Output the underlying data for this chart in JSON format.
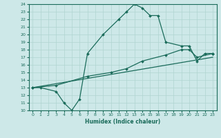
{
  "xlabel": "Humidex (Indice chaleur)",
  "ylabel": "",
  "bg_color": "#cde8e8",
  "grid_color": "#b0d4d0",
  "line_color": "#1a6b5a",
  "xmin": -0.5,
  "xmax": 23.5,
  "ymin": 10,
  "ymax": 24,
  "curve1_x": [
    0,
    1,
    3,
    4,
    5,
    6,
    7,
    9,
    11,
    12,
    13,
    14,
    15,
    16,
    17,
    19,
    20,
    21,
    22,
    23
  ],
  "curve1_y": [
    13,
    13,
    12.5,
    11,
    10,
    11.5,
    17.5,
    20,
    22,
    23,
    24,
    23.5,
    22.5,
    22.5,
    19,
    18.5,
    18.5,
    16.5,
    17.5,
    17.5
  ],
  "curve2_x": [
    0,
    3,
    7,
    10,
    12,
    14,
    17,
    19,
    20,
    21,
    23
  ],
  "curve2_y": [
    13,
    13.3,
    14.5,
    15.0,
    15.5,
    16.5,
    17.3,
    18.0,
    18.0,
    17.0,
    17.5
  ],
  "curve3_x": [
    0,
    23
  ],
  "curve3_y": [
    13,
    17
  ],
  "yticks": [
    10,
    11,
    12,
    13,
    14,
    15,
    16,
    17,
    18,
    19,
    20,
    21,
    22,
    23,
    24
  ],
  "xticks": [
    0,
    1,
    2,
    3,
    4,
    5,
    6,
    7,
    8,
    9,
    10,
    11,
    12,
    13,
    14,
    15,
    16,
    17,
    18,
    19,
    20,
    21,
    22,
    23
  ]
}
